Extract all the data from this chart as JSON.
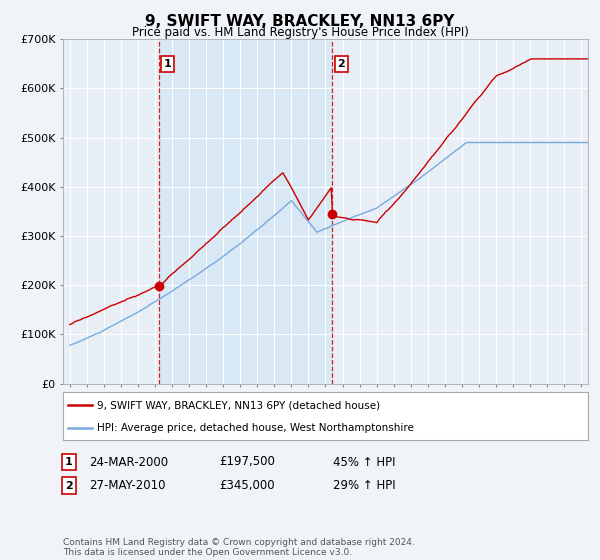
{
  "title": "9, SWIFT WAY, BRACKLEY, NN13 6PY",
  "subtitle": "Price paid vs. HM Land Registry's House Price Index (HPI)",
  "bg_color": "#f0f4f8",
  "plot_bg_color": "#e8eef5",
  "shaded_bg_color": "#d8e8f5",
  "ylim": [
    0,
    700000
  ],
  "yticks": [
    0,
    100000,
    200000,
    300000,
    400000,
    500000,
    600000,
    700000
  ],
  "ytick_labels": [
    "£0",
    "£100K",
    "£200K",
    "£300K",
    "£400K",
    "£500K",
    "£600K",
    "£700K"
  ],
  "sale1_x": 2000.22,
  "sale1_y": 197500,
  "sale1_label": "1",
  "sale2_x": 2010.41,
  "sale2_y": 345000,
  "sale2_label": "2",
  "legend_line1": "9, SWIFT WAY, BRACKLEY, NN13 6PY (detached house)",
  "legend_line2": "HPI: Average price, detached house, West Northamptonshire",
  "table_row1": [
    "1",
    "24-MAR-2000",
    "£197,500",
    "45% ↑ HPI"
  ],
  "table_row2": [
    "2",
    "27-MAY-2010",
    "£345,000",
    "29% ↑ HPI"
  ],
  "footnote": "Contains HM Land Registry data © Crown copyright and database right 2024.\nThis data is licensed under the Open Government Licence v3.0.",
  "line_color_red": "#cc0000",
  "line_color_blue": "#7aaadd",
  "grid_color": "#ffffff",
  "xmin": 1994.6,
  "xmax": 2025.4
}
